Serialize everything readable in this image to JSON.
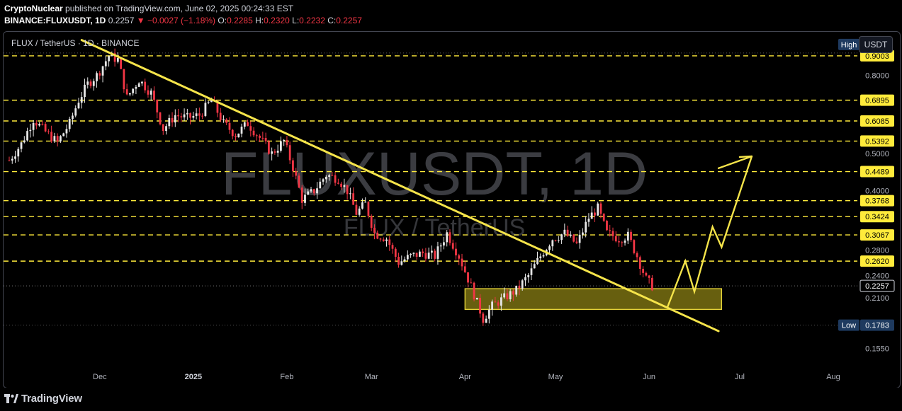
{
  "header": {
    "publisher": "CryptoNuclear",
    "published_text": "published on TradingView.com, June 02, 2025 00:24:33 EST",
    "symbol_full": "BINANCE:FLUXUSDT, 1D",
    "last": "0.2257",
    "change": "−0.0027 (−1.18%)",
    "open_label": "O:",
    "open": "0.2285",
    "high_label": "H:",
    "high": "0.2320",
    "low_label": "L:",
    "low": "0.2232",
    "close_label": "C:",
    "close": "0.2257"
  },
  "chart_header": {
    "symbol_title": "FLUX / TetherUS · 1D · BINANCE",
    "currency_button": "USDT"
  },
  "footer": {
    "brand": "TradingView"
  },
  "colors": {
    "background": "#000000",
    "up": "#e6e6e6",
    "down": "#f23645",
    "level_line": "#ffeb3b",
    "trendline": "#f5e44a",
    "zone_fill": "#8a7f14",
    "watermark": "#6b6e76",
    "axis_text": "#b2b5be"
  },
  "chart_data": {
    "type": "candlestick",
    "symbol": "FLUXUSDT",
    "interval": "1D",
    "exchange": "BINANCE",
    "watermark": "FLUXUSDT, 1D",
    "watermark_sub": "FLUX / TetherUS",
    "y_scale": "log",
    "ylim": [
      0.135,
      1.04
    ],
    "y_ticks": [
      0.155,
      0.21,
      0.24,
      0.28,
      0.4,
      0.5,
      0.8
    ],
    "x_ticks": [
      "Dec",
      "2025",
      "Feb",
      "Mar",
      "Apr",
      "May",
      "Jun",
      "Jul",
      "Aug"
    ],
    "level_labels": [
      0.9003,
      0.6895,
      0.6085,
      0.5392,
      0.4489,
      0.3768,
      0.3424,
      0.3067,
      0.262
    ],
    "high_label": {
      "text": "High",
      "value": 0.9003
    },
    "low_label": {
      "text": "Low",
      "value": 0.1783
    },
    "last_price": 0.2257,
    "trendline": {
      "start": [
        "2024-11-25",
        0.99
      ],
      "end": [
        "2025-06-24",
        0.172
      ]
    },
    "demand_zone": {
      "from": "2025-04-01",
      "to": "2025-06-25",
      "low": 0.196,
      "high": 0.222
    },
    "projection_path": [
      [
        "2025-06-07",
        0.198
      ],
      [
        "2025-06-13",
        0.262
      ],
      [
        "2025-06-16",
        0.218
      ],
      [
        "2025-06-22",
        0.322
      ],
      [
        "2025-06-25",
        0.285
      ],
      [
        "2025-07-05",
        0.492
      ]
    ],
    "projection_arrow_head_points": [
      [
        "2025-06-24",
        0.458
      ],
      [
        "2025-07-01",
        0.49
      ]
    ],
    "price_path": [
      [
        "2024-11-01",
        0.48
      ],
      [
        "2024-11-05",
        0.53
      ],
      [
        "2024-11-09",
        0.615
      ],
      [
        "2024-11-13",
        0.57
      ],
      [
        "2024-11-17",
        0.535
      ],
      [
        "2024-11-21",
        0.6
      ],
      [
        "2024-11-24",
        0.69
      ],
      [
        "2024-11-27",
        0.76
      ],
      [
        "2024-11-30",
        0.8
      ],
      [
        "2024-12-04",
        0.9
      ],
      [
        "2024-12-07",
        0.88
      ],
      [
        "2024-12-10",
        0.7
      ],
      [
        "2024-12-14",
        0.78
      ],
      [
        "2024-12-18",
        0.72
      ],
      [
        "2024-12-22",
        0.58
      ],
      [
        "2024-12-26",
        0.63
      ],
      [
        "2024-12-30",
        0.62
      ],
      [
        "2025-01-03",
        0.63
      ],
      [
        "2025-01-07",
        0.69
      ],
      [
        "2025-01-11",
        0.6
      ],
      [
        "2025-01-15",
        0.56
      ],
      [
        "2025-01-19",
        0.6
      ],
      [
        "2025-01-23",
        0.55
      ],
      [
        "2025-01-27",
        0.5
      ],
      [
        "2025-01-31",
        0.54
      ],
      [
        "2025-02-03",
        0.46
      ],
      [
        "2025-02-06",
        0.38
      ],
      [
        "2025-02-10",
        0.4
      ],
      [
        "2025-02-14",
        0.44
      ],
      [
        "2025-02-18",
        0.43
      ],
      [
        "2025-02-21",
        0.4
      ],
      [
        "2025-02-24",
        0.35
      ],
      [
        "2025-02-27",
        0.37
      ],
      [
        "2025-03-02",
        0.31
      ],
      [
        "2025-03-06",
        0.3
      ],
      [
        "2025-03-10",
        0.26
      ],
      [
        "2025-03-14",
        0.27
      ],
      [
        "2025-03-18",
        0.275
      ],
      [
        "2025-03-22",
        0.27
      ],
      [
        "2025-03-26",
        0.31
      ],
      [
        "2025-03-30",
        0.27
      ],
      [
        "2025-04-03",
        0.225
      ],
      [
        "2025-04-07",
        0.185
      ],
      [
        "2025-04-10",
        0.2
      ],
      [
        "2025-04-14",
        0.21
      ],
      [
        "2025-04-18",
        0.22
      ],
      [
        "2025-04-22",
        0.24
      ],
      [
        "2025-04-26",
        0.27
      ],
      [
        "2025-04-30",
        0.3
      ],
      [
        "2025-05-04",
        0.31
      ],
      [
        "2025-05-08",
        0.29
      ],
      [
        "2025-05-12",
        0.34
      ],
      [
        "2025-05-15",
        0.36
      ],
      [
        "2025-05-18",
        0.31
      ],
      [
        "2025-05-22",
        0.3
      ],
      [
        "2025-05-25",
        0.305
      ],
      [
        "2025-05-28",
        0.27
      ],
      [
        "2025-05-31",
        0.235
      ],
      [
        "2025-06-02",
        0.2257
      ]
    ]
  }
}
